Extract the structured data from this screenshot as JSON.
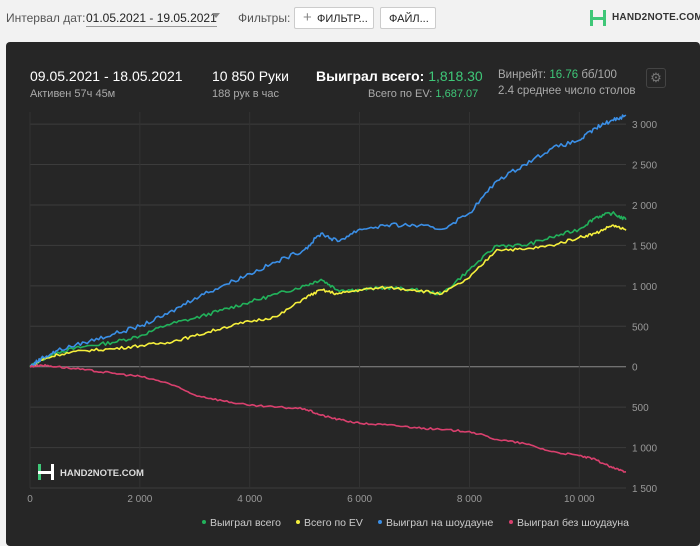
{
  "toolbar": {
    "date_label": "Интервал дат:",
    "date_value": "01.05.2021 - 19.05.2021",
    "filters_label": "Фильтры:",
    "filter_button": "ФИЛЬТР...",
    "file_button": "ФАЙЛ...",
    "logo_text": "HAND2NOTE.COM"
  },
  "stats": {
    "period": "09.05.2021 - 18.05.2021",
    "active": "Активен 57ч 45м",
    "hands": "10 850 Руки",
    "hands_per_hour": "188 рук в час",
    "won_total_label": "Выиграл всего:",
    "won_total_value": "1,818.30",
    "ev_label": "Всего по EV:",
    "ev_value": "1,687.07",
    "winrate_label": "Винрейт:",
    "winrate_value": "16.76",
    "winrate_unit": "бб/100",
    "tables": "2.4 среднее число столов"
  },
  "colors": {
    "green": "#22b25b",
    "yellow": "#f5ef3c",
    "blue": "#3b8fe6",
    "red": "#d9406e"
  },
  "chart_data": {
    "type": "line",
    "xlim": [
      0,
      10850
    ],
    "ylim": [
      -1500,
      3150
    ],
    "x_ticks": [
      0,
      2000,
      4000,
      6000,
      8000,
      10000
    ],
    "x_tick_labels": [
      "0",
      "2 000",
      "4 000",
      "6 000",
      "8 000",
      "10 000"
    ],
    "y_ticks": [
      3000,
      2500,
      2000,
      1500,
      1000,
      500,
      0,
      -500,
      -1000,
      -1500
    ],
    "y_tick_labels": [
      "3 000",
      "2 500",
      "2 000",
      "1 500",
      "1 000",
      "500",
      "0",
      "500",
      "1 000",
      "1 500"
    ],
    "watermark": "HAND2NOTE.COM",
    "series": [
      {
        "name": "Выиграл всего",
        "color": "#22b25b",
        "x": [
          0,
          200,
          500,
          1000,
          1500,
          2000,
          2500,
          3000,
          3500,
          4000,
          4500,
          5000,
          5300,
          5600,
          6000,
          6500,
          7000,
          7500,
          8000,
          8500,
          9000,
          9500,
          10000,
          10300,
          10600,
          10850
        ],
        "y": [
          0,
          80,
          180,
          250,
          300,
          380,
          520,
          600,
          700,
          800,
          900,
          1000,
          1080,
          950,
          950,
          980,
          950,
          900,
          1200,
          1500,
          1500,
          1600,
          1700,
          1850,
          1900,
          1818
        ]
      },
      {
        "name": "Всего по EV",
        "color": "#f5ef3c",
        "x": [
          0,
          200,
          500,
          1000,
          1500,
          2000,
          2500,
          3000,
          3500,
          4000,
          4500,
          5000,
          5300,
          5600,
          6000,
          6500,
          7000,
          7500,
          8000,
          8500,
          9000,
          9500,
          10000,
          10300,
          10600,
          10850
        ],
        "y": [
          0,
          80,
          150,
          200,
          220,
          260,
          300,
          380,
          480,
          560,
          620,
          850,
          950,
          900,
          950,
          980,
          950,
          900,
          1100,
          1450,
          1450,
          1500,
          1600,
          1650,
          1750,
          1687
        ]
      },
      {
        "name": "Выиграл на шоудауне",
        "color": "#3b8fe6",
        "x": [
          0,
          200,
          500,
          1000,
          1500,
          2000,
          2500,
          3000,
          3500,
          4000,
          4500,
          5000,
          5300,
          5600,
          6000,
          6500,
          7000,
          7500,
          8000,
          8500,
          9000,
          9500,
          10000,
          10300,
          10600,
          10850
        ],
        "y": [
          0,
          100,
          200,
          300,
          400,
          500,
          650,
          850,
          1000,
          1150,
          1300,
          1450,
          1650,
          1550,
          1700,
          1750,
          1750,
          1700,
          1900,
          2300,
          2500,
          2700,
          2800,
          2950,
          3050,
          3110
        ]
      },
      {
        "name": "Выиграл без шоудауна",
        "color": "#d9406e",
        "x": [
          0,
          200,
          500,
          1000,
          1500,
          2000,
          2500,
          3000,
          3500,
          4000,
          4500,
          5000,
          5300,
          5600,
          6000,
          6500,
          7000,
          7500,
          8000,
          8500,
          9000,
          9500,
          10000,
          10300,
          10600,
          10850
        ],
        "y": [
          0,
          20,
          0,
          -40,
          -80,
          -120,
          -200,
          -350,
          -420,
          -480,
          -500,
          -520,
          -600,
          -650,
          -700,
          -720,
          -750,
          -780,
          -800,
          -900,
          -950,
          -1050,
          -1100,
          -1150,
          -1250,
          -1300
        ]
      }
    ]
  }
}
